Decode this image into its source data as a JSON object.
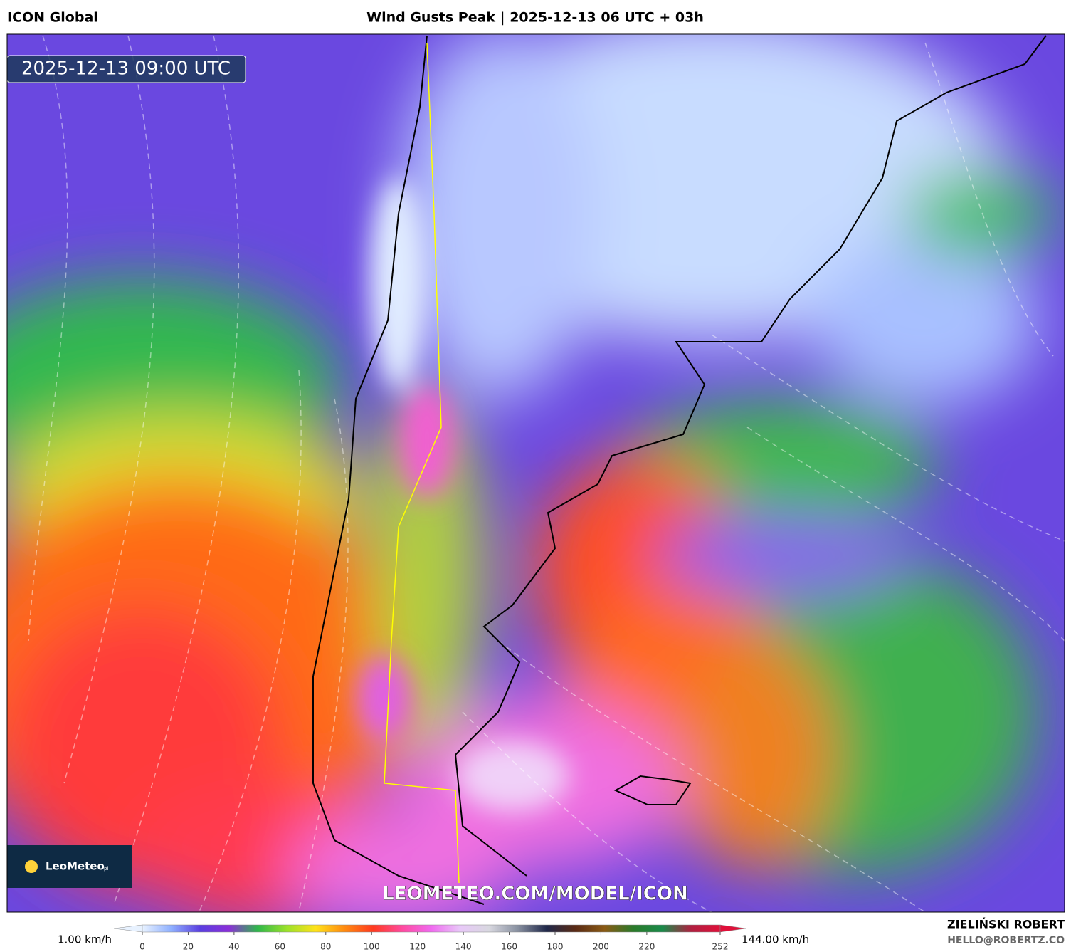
{
  "header": {
    "model": "ICON Global",
    "title": "Wind Gusts Peak | 2025-12-13 06 UTC + 03h"
  },
  "map": {
    "valid_time": "2025-12-13 09:00 UTC",
    "logo": "LeoMeteo",
    "logo_suffix": "pl",
    "watermark": "LEOMETEO.COM/MODEL/ICON"
  },
  "colorbar": {
    "min_label": "1.00 km/h",
    "max_label": "144.00 km/h",
    "range": [
      0,
      252
    ],
    "ticks": [
      0,
      20,
      40,
      60,
      80,
      100,
      120,
      140,
      160,
      180,
      200,
      220,
      252
    ],
    "colors": [
      "#e8f2ff",
      "#8fb0ff",
      "#5a3fe0",
      "#8a2fd8",
      "#2fb84a",
      "#9be22a",
      "#ffe21a",
      "#ff8a10",
      "#ff3a20",
      "#ff4aa0",
      "#f06af0",
      "#e8c8f8",
      "#d8d8e0",
      "#8890a0",
      "#20284a",
      "#5a2a14",
      "#8a5a14",
      "#2a7a2a",
      "#1a8a4a",
      "#b02040",
      "#e0103a"
    ]
  },
  "footer": {
    "author": "ZIELIŃSKI ROBERT",
    "contact": "HELLO@ROBERTZ.CO"
  }
}
